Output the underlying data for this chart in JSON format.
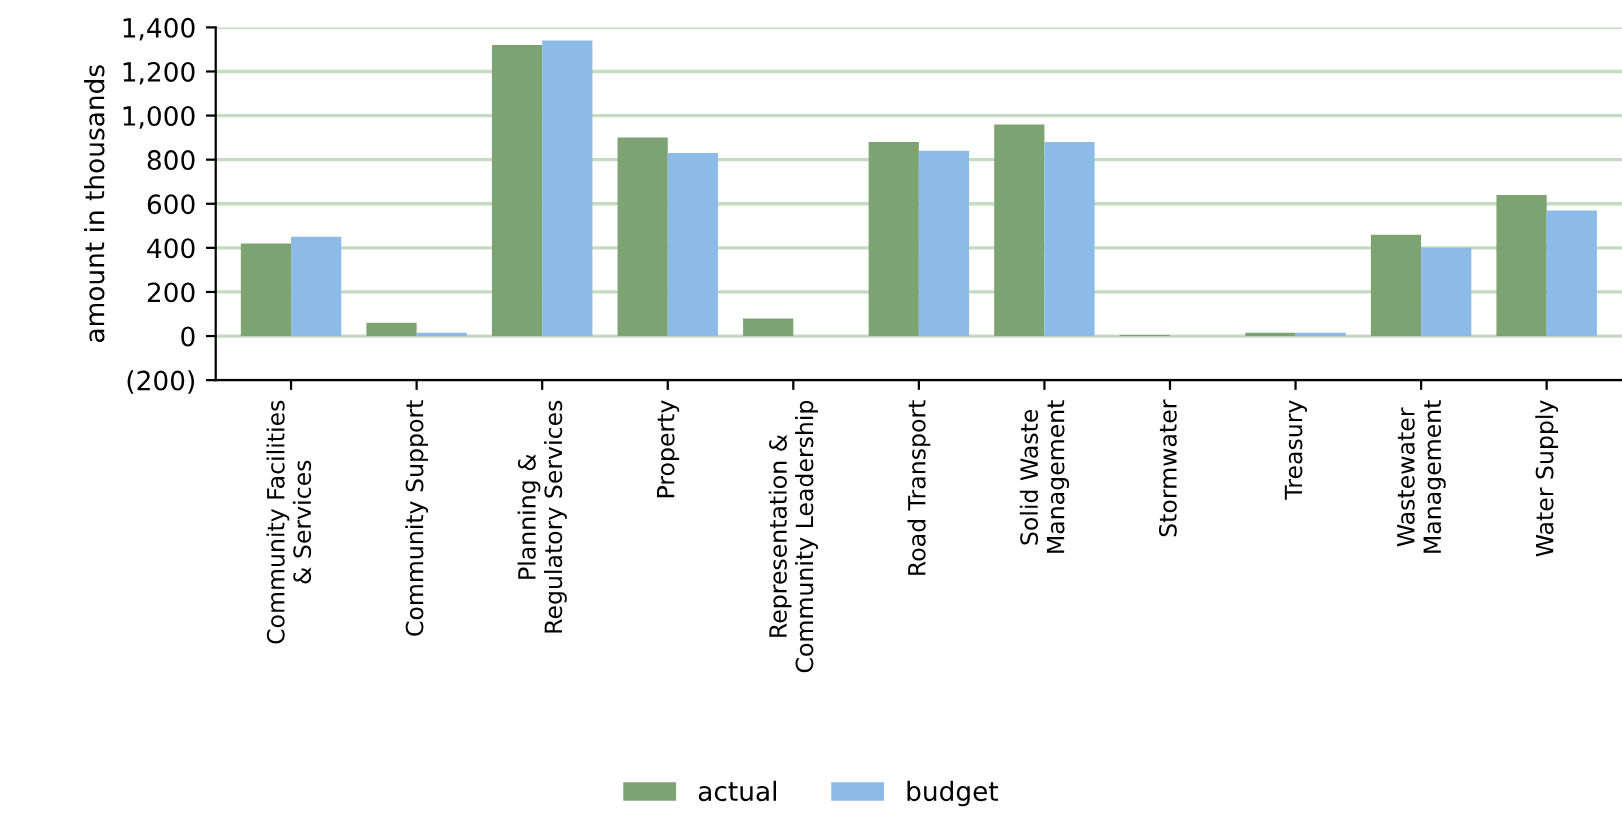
{
  "chart_data": {
    "type": "bar",
    "ylabel": "amount in thousands",
    "categories": [
      "Community Facilities\n& Services",
      "Community Support",
      "Planning &\nRegulatory Services",
      "Property",
      "Representation &\nCommunity Leadership",
      "Road Transport",
      "Solid Waste\nManagement",
      "Stormwater",
      "Treasury",
      "Wastewater\nManagement",
      "Water Supply"
    ],
    "series": [
      {
        "name": "actual",
        "color": "#7ea372",
        "values": [
          420,
          60,
          1320,
          900,
          80,
          880,
          960,
          5,
          15,
          460,
          640
        ]
      },
      {
        "name": "budget",
        "color": "#8dbbe8",
        "values": [
          450,
          15,
          1340,
          830,
          null,
          840,
          880,
          null,
          15,
          400,
          570
        ]
      }
    ],
    "ylim": [
      -200,
      1400
    ],
    "yticks": [
      {
        "value": -200,
        "label": "(200)"
      },
      0,
      200,
      400,
      600,
      800,
      {
        "value": 1000,
        "label": "1,000"
      },
      {
        "value": 1200,
        "label": "1,200"
      },
      {
        "value": 1400,
        "label": "1,400"
      }
    ],
    "grid": "y",
    "legend": "bottom"
  }
}
